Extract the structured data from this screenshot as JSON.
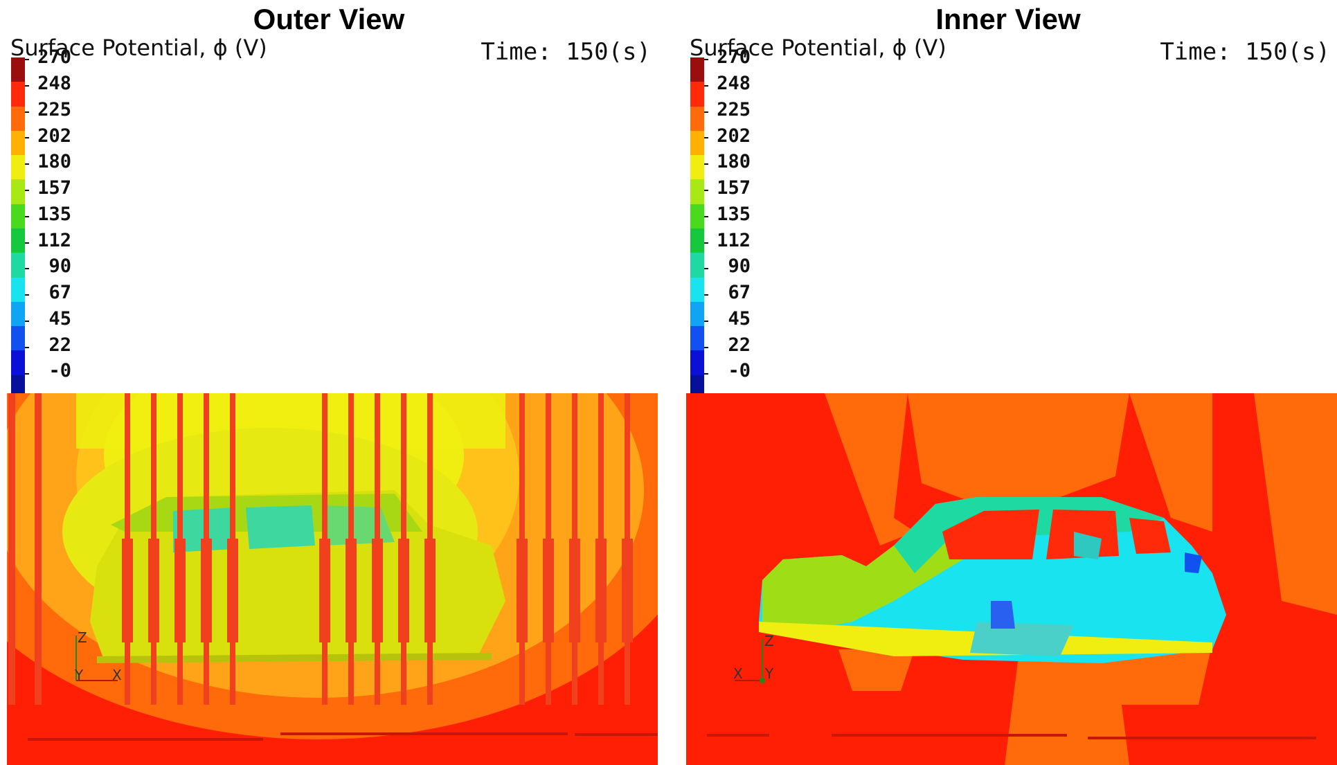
{
  "panels": {
    "outer": {
      "title": "Outer View",
      "colorbar_title": "Surface Potential, ϕ (V)",
      "time_label": "Time:",
      "time_value": "150(s)",
      "axes": {
        "z": "Z",
        "y": "Y",
        "x": "X"
      }
    },
    "inner": {
      "title": "Inner View",
      "colorbar_title": "Surface Potential, ϕ (V)",
      "time_label": "Time:",
      "time_value": "150(s)",
      "axes": {
        "z": "Z",
        "y": "Y",
        "x": "X"
      }
    }
  },
  "colorbar": {
    "ticks": [
      "270",
      "248",
      "225",
      "202",
      "180",
      "157",
      "135",
      "112",
      "90",
      "67",
      "45",
      "22",
      "-0"
    ],
    "colors": [
      "#9b0e0e",
      "#ff2a0a",
      "#ff6a0a",
      "#ffb000",
      "#f0ee10",
      "#a8e814",
      "#49d91d",
      "#16c83e",
      "#1fd9a2",
      "#18e3ee",
      "#10a5f4",
      "#1151f0",
      "#0b10d6",
      "#06109a"
    ]
  },
  "colors": {
    "outer_background": "#ffa319",
    "inner_background": "#ff1f05",
    "electrode": "#f0401e"
  }
}
